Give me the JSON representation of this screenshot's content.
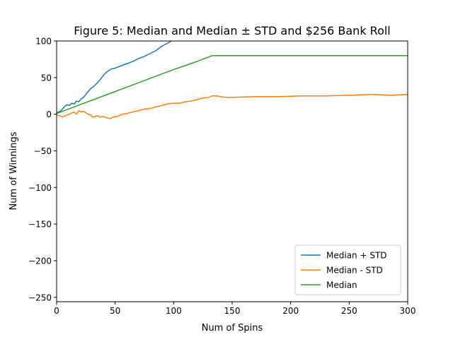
{
  "chart_data": {
    "type": "line",
    "title": "Figure 5: Median and Median ± STD and $256 Bank Roll",
    "xlabel": "Num of Spins",
    "ylabel": "Num of Winnings",
    "xlim": [
      0,
      300
    ],
    "ylim": [
      -256,
      100
    ],
    "xticks": [
      0,
      50,
      100,
      150,
      200,
      250,
      300
    ],
    "yticks": [
      100,
      50,
      0,
      -50,
      -100,
      -150,
      -200,
      -250
    ],
    "xtick_labels": [
      "0",
      "50",
      "100",
      "150",
      "200",
      "250",
      "300"
    ],
    "ytick_labels": [
      "100",
      "50",
      "0",
      "−50",
      "−100",
      "−150",
      "−200",
      "−250"
    ],
    "grid": false,
    "legend_position": "lower-right",
    "series": [
      {
        "name": "Median + STD",
        "color": "#1f77b4",
        "points": [
          [
            0,
            2
          ],
          [
            3,
            4
          ],
          [
            5,
            7
          ],
          [
            7,
            11
          ],
          [
            9,
            13
          ],
          [
            11,
            12
          ],
          [
            13,
            15
          ],
          [
            15,
            14
          ],
          [
            17,
            18
          ],
          [
            19,
            17
          ],
          [
            21,
            21
          ],
          [
            23,
            23
          ],
          [
            25,
            27
          ],
          [
            27,
            31
          ],
          [
            29,
            35
          ],
          [
            31,
            37
          ],
          [
            33,
            40
          ],
          [
            35,
            43
          ],
          [
            37,
            47
          ],
          [
            39,
            51
          ],
          [
            41,
            55
          ],
          [
            43,
            58
          ],
          [
            45,
            60
          ],
          [
            47,
            62
          ],
          [
            50,
            63
          ],
          [
            55,
            66
          ],
          [
            60,
            69
          ],
          [
            65,
            72
          ],
          [
            70,
            76
          ],
          [
            75,
            79
          ],
          [
            80,
            83
          ],
          [
            85,
            87
          ],
          [
            90,
            93
          ],
          [
            95,
            97
          ],
          [
            98,
            100
          ]
        ]
      },
      {
        "name": "Median - STD",
        "color": "#ff7f0e",
        "points": [
          [
            0,
            -1
          ],
          [
            3,
            -2
          ],
          [
            5,
            -4
          ],
          [
            7,
            -2
          ],
          [
            9,
            -1
          ],
          [
            11,
            0
          ],
          [
            13,
            2
          ],
          [
            15,
            3
          ],
          [
            17,
            0
          ],
          [
            19,
            5
          ],
          [
            21,
            3
          ],
          [
            23,
            4
          ],
          [
            25,
            2
          ],
          [
            27,
            0
          ],
          [
            29,
            -1
          ],
          [
            31,
            -4
          ],
          [
            33,
            -3
          ],
          [
            35,
            -2
          ],
          [
            37,
            -4
          ],
          [
            40,
            -3
          ],
          [
            43,
            -5
          ],
          [
            46,
            -6
          ],
          [
            48,
            -4
          ],
          [
            52,
            -3
          ],
          [
            56,
            0
          ],
          [
            60,
            1
          ],
          [
            65,
            3
          ],
          [
            70,
            5
          ],
          [
            75,
            7
          ],
          [
            80,
            8
          ],
          [
            85,
            10
          ],
          [
            90,
            12
          ],
          [
            95,
            14
          ],
          [
            100,
            15
          ],
          [
            105,
            15
          ],
          [
            110,
            17
          ],
          [
            115,
            18
          ],
          [
            120,
            20
          ],
          [
            125,
            22
          ],
          [
            130,
            23
          ],
          [
            133,
            25
          ],
          [
            137,
            25
          ],
          [
            140,
            24
          ],
          [
            145,
            23
          ],
          [
            150,
            23
          ],
          [
            170,
            24
          ],
          [
            190,
            24
          ],
          [
            210,
            25
          ],
          [
            230,
            25
          ],
          [
            250,
            26
          ],
          [
            270,
            27
          ],
          [
            285,
            26
          ],
          [
            300,
            27
          ]
        ]
      },
      {
        "name": "Median",
        "color": "#2ca02c",
        "points": [
          [
            0,
            1
          ],
          [
            20,
            13
          ],
          [
            40,
            25
          ],
          [
            60,
            37
          ],
          [
            80,
            49
          ],
          [
            100,
            61
          ],
          [
            120,
            72
          ],
          [
            133,
            80
          ],
          [
            150,
            80
          ],
          [
            200,
            80
          ],
          [
            250,
            80
          ],
          [
            300,
            80
          ]
        ]
      }
    ]
  }
}
